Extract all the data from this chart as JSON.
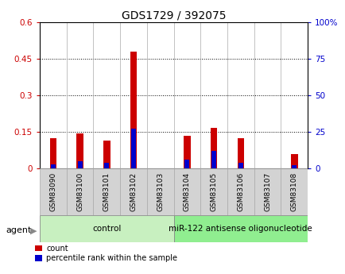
{
  "title": "GDS1729 / 392075",
  "samples": [
    "GSM83090",
    "GSM83100",
    "GSM83101",
    "GSM83102",
    "GSM83103",
    "GSM83104",
    "GSM83105",
    "GSM83106",
    "GSM83107",
    "GSM83108"
  ],
  "count_values": [
    0.125,
    0.145,
    0.115,
    0.48,
    0.0,
    0.135,
    0.165,
    0.125,
    0.0,
    0.06
  ],
  "percentile_values": [
    3,
    5,
    4,
    27,
    0,
    6,
    12,
    4,
    0,
    2
  ],
  "groups": [
    {
      "label": "control",
      "start": 0,
      "end": 4,
      "color": "#c8f0c0"
    },
    {
      "label": "miR-122 antisense oligonucleotide",
      "start": 5,
      "end": 9,
      "color": "#90ee90"
    }
  ],
  "left_ylim": [
    0,
    0.6
  ],
  "right_ylim": [
    0,
    100
  ],
  "left_yticks": [
    0,
    0.15,
    0.3,
    0.45,
    0.6
  ],
  "right_yticks": [
    0,
    25,
    50,
    75,
    100
  ],
  "left_yticklabels": [
    "0",
    "0.15",
    "0.3",
    "0.45",
    "0.6"
  ],
  "right_yticklabels": [
    "0",
    "25",
    "50",
    "75",
    "100%"
  ],
  "count_bar_width": 0.25,
  "percentile_bar_width": 0.18,
  "count_color": "#cc0000",
  "percentile_color": "#0000cc",
  "tick_label_bg": "#d3d3d3",
  "legend_count": "count",
  "legend_percentile": "percentile rank within the sample",
  "agent_label": "agent"
}
